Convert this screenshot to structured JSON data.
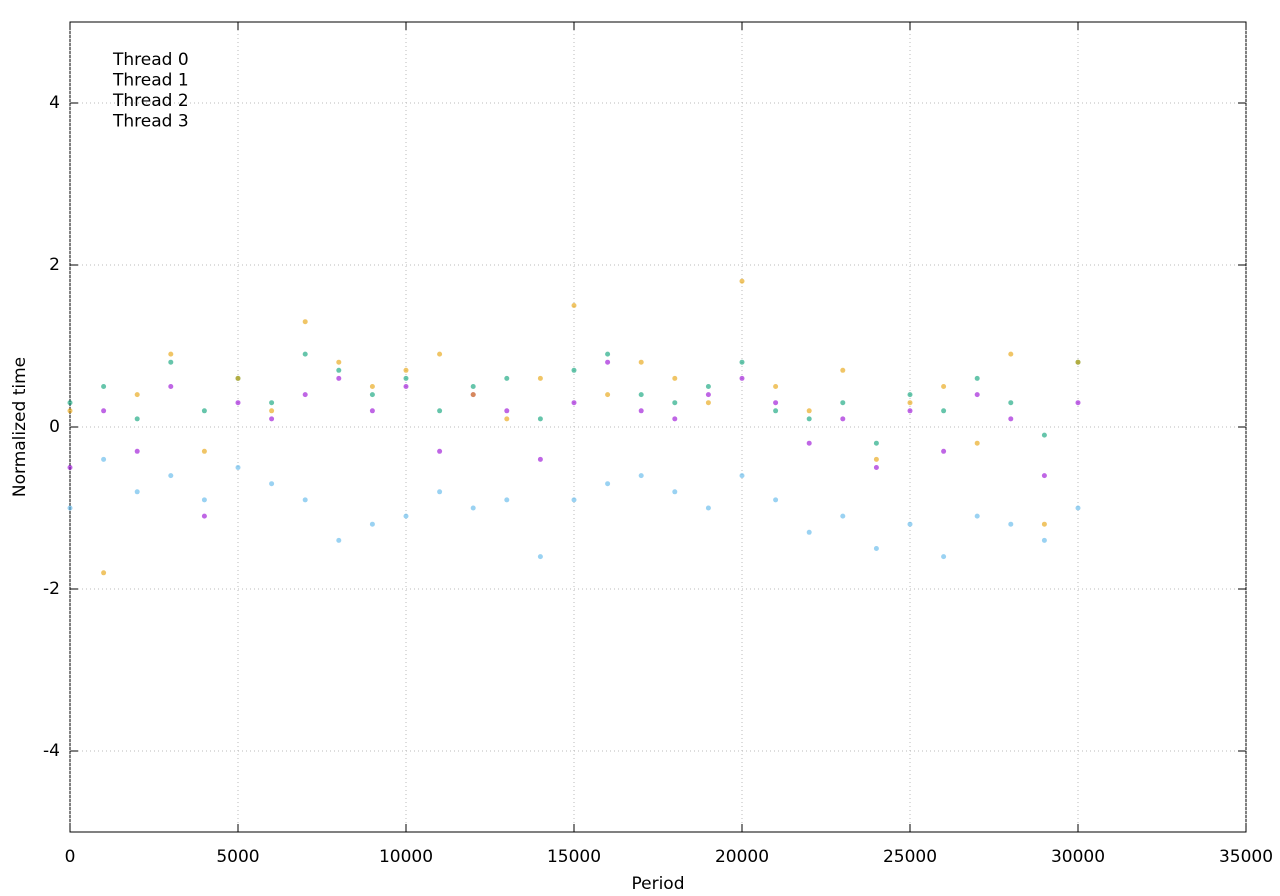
{
  "chart_data": {
    "type": "scatter",
    "xlabel": "Period",
    "ylabel": "Normalized time",
    "x": [
      0,
      1000,
      2000,
      3000,
      4000,
      5000,
      6000,
      7000,
      8000,
      9000,
      10000,
      11000,
      12000,
      13000,
      14000,
      15000,
      16000,
      17000,
      18000,
      19000,
      20000,
      21000,
      22000,
      23000,
      24000,
      25000,
      26000,
      27000,
      28000,
      29000,
      30000
    ],
    "series": [
      {
        "name": "Thread 0",
        "color": "#9400d3",
        "values": [
          -0.5,
          0.2,
          -0.3,
          0.5,
          -1.1,
          0.3,
          0.1,
          0.4,
          0.6,
          0.2,
          0.5,
          -0.3,
          0.4,
          0.2,
          -0.4,
          0.3,
          0.8,
          0.2,
          0.1,
          0.4,
          0.6,
          0.3,
          -0.2,
          0.1,
          -0.5,
          0.2,
          -0.3,
          0.4,
          0.1,
          -0.6,
          0.3
        ]
      },
      {
        "name": "Thread 1",
        "color": "#009e73",
        "values": [
          0.3,
          0.5,
          0.1,
          0.8,
          0.2,
          0.6,
          0.3,
          0.9,
          0.7,
          0.4,
          0.6,
          0.2,
          0.5,
          0.6,
          0.1,
          0.7,
          0.9,
          0.4,
          0.3,
          0.5,
          0.8,
          0.2,
          0.1,
          0.3,
          -0.2,
          0.4,
          0.2,
          0.6,
          0.3,
          -0.1,
          0.8
        ]
      },
      {
        "name": "Thread 2",
        "color": "#56b4e9",
        "values": [
          -1.0,
          -0.4,
          -0.8,
          -0.6,
          -0.9,
          -0.5,
          -0.7,
          -0.9,
          -1.4,
          -1.2,
          -1.1,
          -0.8,
          -1.0,
          -0.9,
          -1.6,
          -0.9,
          -0.7,
          -0.6,
          -0.8,
          -1.0,
          -0.6,
          -0.9,
          -1.3,
          -1.1,
          -1.5,
          -1.2,
          -1.6,
          -1.1,
          -1.2,
          -1.4,
          -1.0
        ]
      },
      {
        "name": "Thread 3",
        "color": "#e69f00",
        "values": [
          0.2,
          -1.8,
          0.4,
          0.9,
          -0.3,
          0.6,
          0.2,
          1.3,
          0.8,
          0.5,
          0.7,
          0.9,
          0.4,
          0.1,
          0.6,
          1.5,
          0.4,
          0.8,
          0.6,
          0.3,
          1.8,
          0.5,
          0.2,
          0.7,
          -0.4,
          0.3,
          0.5,
          -0.2,
          0.9,
          -1.2,
          0.8
        ]
      }
    ],
    "xlim": [
      0,
      35000
    ],
    "xticks": [
      0,
      5000,
      10000,
      15000,
      20000,
      25000,
      30000,
      35000
    ],
    "ylim": [
      -5,
      5
    ],
    "yticks": [
      -4,
      -2,
      0,
      2,
      4
    ],
    "grid": true,
    "legend": "top-left"
  }
}
